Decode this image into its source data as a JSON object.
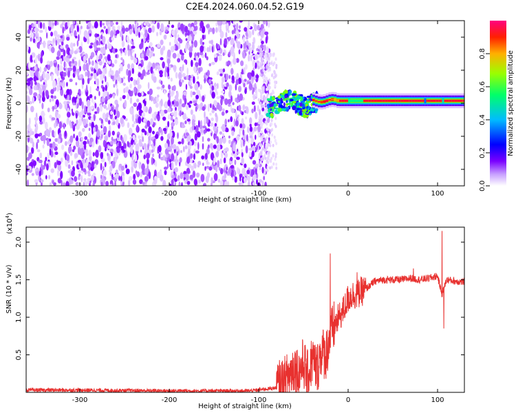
{
  "title": "C2E4.2024.060.04.52.G19",
  "colors": {
    "axis": "#000000",
    "snr_line": "#e8312f",
    "spectrogram_cmap": [
      "#ffffff",
      "#d9b8ff",
      "#7f00ff",
      "#0000ff",
      "#00b4ff",
      "#00ff7f",
      "#7fff00",
      "#ffb400",
      "#ff0000",
      "#ff0080"
    ]
  },
  "chart_data": [
    {
      "type": "heatmap",
      "title": "",
      "xlabel": "Height of straight line (km)",
      "ylabel": "Frequency (Hz)",
      "xlim": [
        -360,
        130
      ],
      "ylim": [
        -50,
        50
      ],
      "x_ticks": [
        -300,
        -200,
        -100,
        0,
        100
      ],
      "y_ticks": [
        -40,
        -20,
        0,
        20,
        40
      ],
      "colorbar": {
        "label": "Normalized spectral amplitude",
        "range": [
          0.0,
          1.0
        ],
        "ticks": [
          "0.0",
          "0.2",
          "0.4",
          "0.6",
          "0.8"
        ]
      },
      "description_regions": [
        {
          "x_range": [
            -360,
            -90
          ],
          "pattern": "noise",
          "amplitude_range": [
            0.0,
            0.3
          ]
        },
        {
          "x_range": [
            -90,
            -40
          ],
          "pattern": "wandering tone near 0 Hz",
          "amplitude_range": [
            0.3,
            0.7
          ]
        },
        {
          "x_range": [
            -40,
            130
          ],
          "pattern": "stable tone at ~2 Hz",
          "amplitude_range": [
            0.8,
            1.0
          ]
        }
      ]
    },
    {
      "type": "line",
      "title": "",
      "xlabel": "Height of straight line (km)",
      "ylabel": "SNR (10 * v/v)",
      "scale_label": "(x10",
      "scale_exponent": "4",
      "scale_close": ")",
      "xlim": [
        -360,
        130
      ],
      "ylim": [
        0,
        2.2
      ],
      "x_ticks": [
        -300,
        -200,
        -100,
        0,
        100
      ],
      "y_ticks": [
        "0.5",
        "1.0",
        "1.5",
        "2.0"
      ],
      "series": [
        {
          "x": [
            -360,
            -300,
            -200,
            -110,
            -80,
            -70,
            -60,
            -55,
            -50,
            -45,
            -40,
            -35,
            -30,
            -25,
            -20,
            -15,
            -10,
            -5,
            0,
            5,
            10,
            20,
            30,
            40,
            50,
            60,
            70,
            80,
            90,
            100,
            105,
            110,
            120,
            130
          ],
          "y": [
            0.03,
            0.03,
            0.02,
            0.02,
            0.06,
            0.15,
            0.35,
            0.25,
            0.4,
            0.2,
            0.45,
            0.3,
            0.55,
            0.5,
            0.75,
            0.9,
            1.0,
            1.1,
            1.25,
            1.3,
            1.3,
            1.38,
            1.48,
            1.5,
            1.5,
            1.5,
            1.52,
            1.5,
            1.52,
            1.55,
            1.3,
            1.5,
            1.48,
            1.47
          ],
          "spikes": [
            {
              "x": -20,
              "y": 1.85
            },
            {
              "x": 10,
              "y": 1.6
            },
            {
              "x": 73,
              "y": 1.65
            },
            {
              "x": 105,
              "y": 2.15
            },
            {
              "x": 107,
              "y": 0.85
            }
          ]
        }
      ]
    }
  ]
}
